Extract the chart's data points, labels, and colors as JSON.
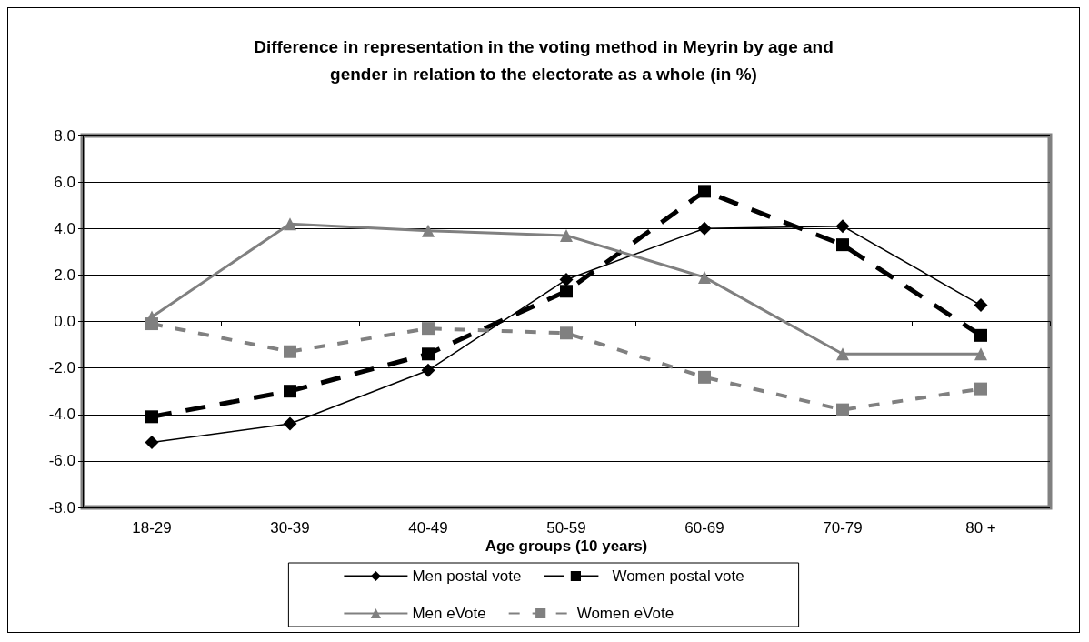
{
  "chart_data": {
    "type": "line",
    "title": "Difference in representation in the voting method in Meyrin by age and\ngender in relation to the electorate as a whole (in %)",
    "xlabel": "Age groups (10 years)",
    "categories": [
      "18-29",
      "30-39",
      "40-49",
      "50-59",
      "60-69",
      "70-79",
      "80 +"
    ],
    "series": [
      {
        "name": "Men postal vote",
        "color": "#000000",
        "marker": "diamond",
        "line_style": "solid",
        "values": [
          -5.2,
          -4.4,
          -2.1,
          1.8,
          4.0,
          4.1,
          0.7
        ]
      },
      {
        "name": "Women postal vote",
        "color": "#000000",
        "marker": "square",
        "line_style": "dashed",
        "values": [
          -4.1,
          -3.0,
          -1.4,
          1.3,
          5.6,
          3.3,
          -0.6
        ]
      },
      {
        "name": "Men eVote",
        "color": "#808080",
        "marker": "triangle",
        "line_style": "solid",
        "values": [
          0.2,
          4.2,
          3.9,
          3.7,
          1.9,
          -1.4,
          -1.4
        ]
      },
      {
        "name": "Women eVote",
        "color": "#808080",
        "marker": "square",
        "line_style": "dashed",
        "values": [
          -0.1,
          -1.3,
          -0.3,
          -0.5,
          -2.4,
          -3.8,
          -2.9
        ]
      }
    ],
    "ylim": [
      -8,
      8
    ],
    "yticks": [
      {
        "value": -8,
        "label": "-8.0"
      },
      {
        "value": -6,
        "label": "-6.0"
      },
      {
        "value": -4,
        "label": "-4.0"
      },
      {
        "value": -2,
        "label": "-2.0"
      },
      {
        "value": 0,
        "label": "0.0"
      },
      {
        "value": 2,
        "label": "2.0"
      },
      {
        "value": 4,
        "label": "4.0"
      },
      {
        "value": 6,
        "label": "6.0"
      },
      {
        "value": 8,
        "label": "8.0"
      }
    ],
    "grid": "y",
    "legend": "bottom"
  }
}
